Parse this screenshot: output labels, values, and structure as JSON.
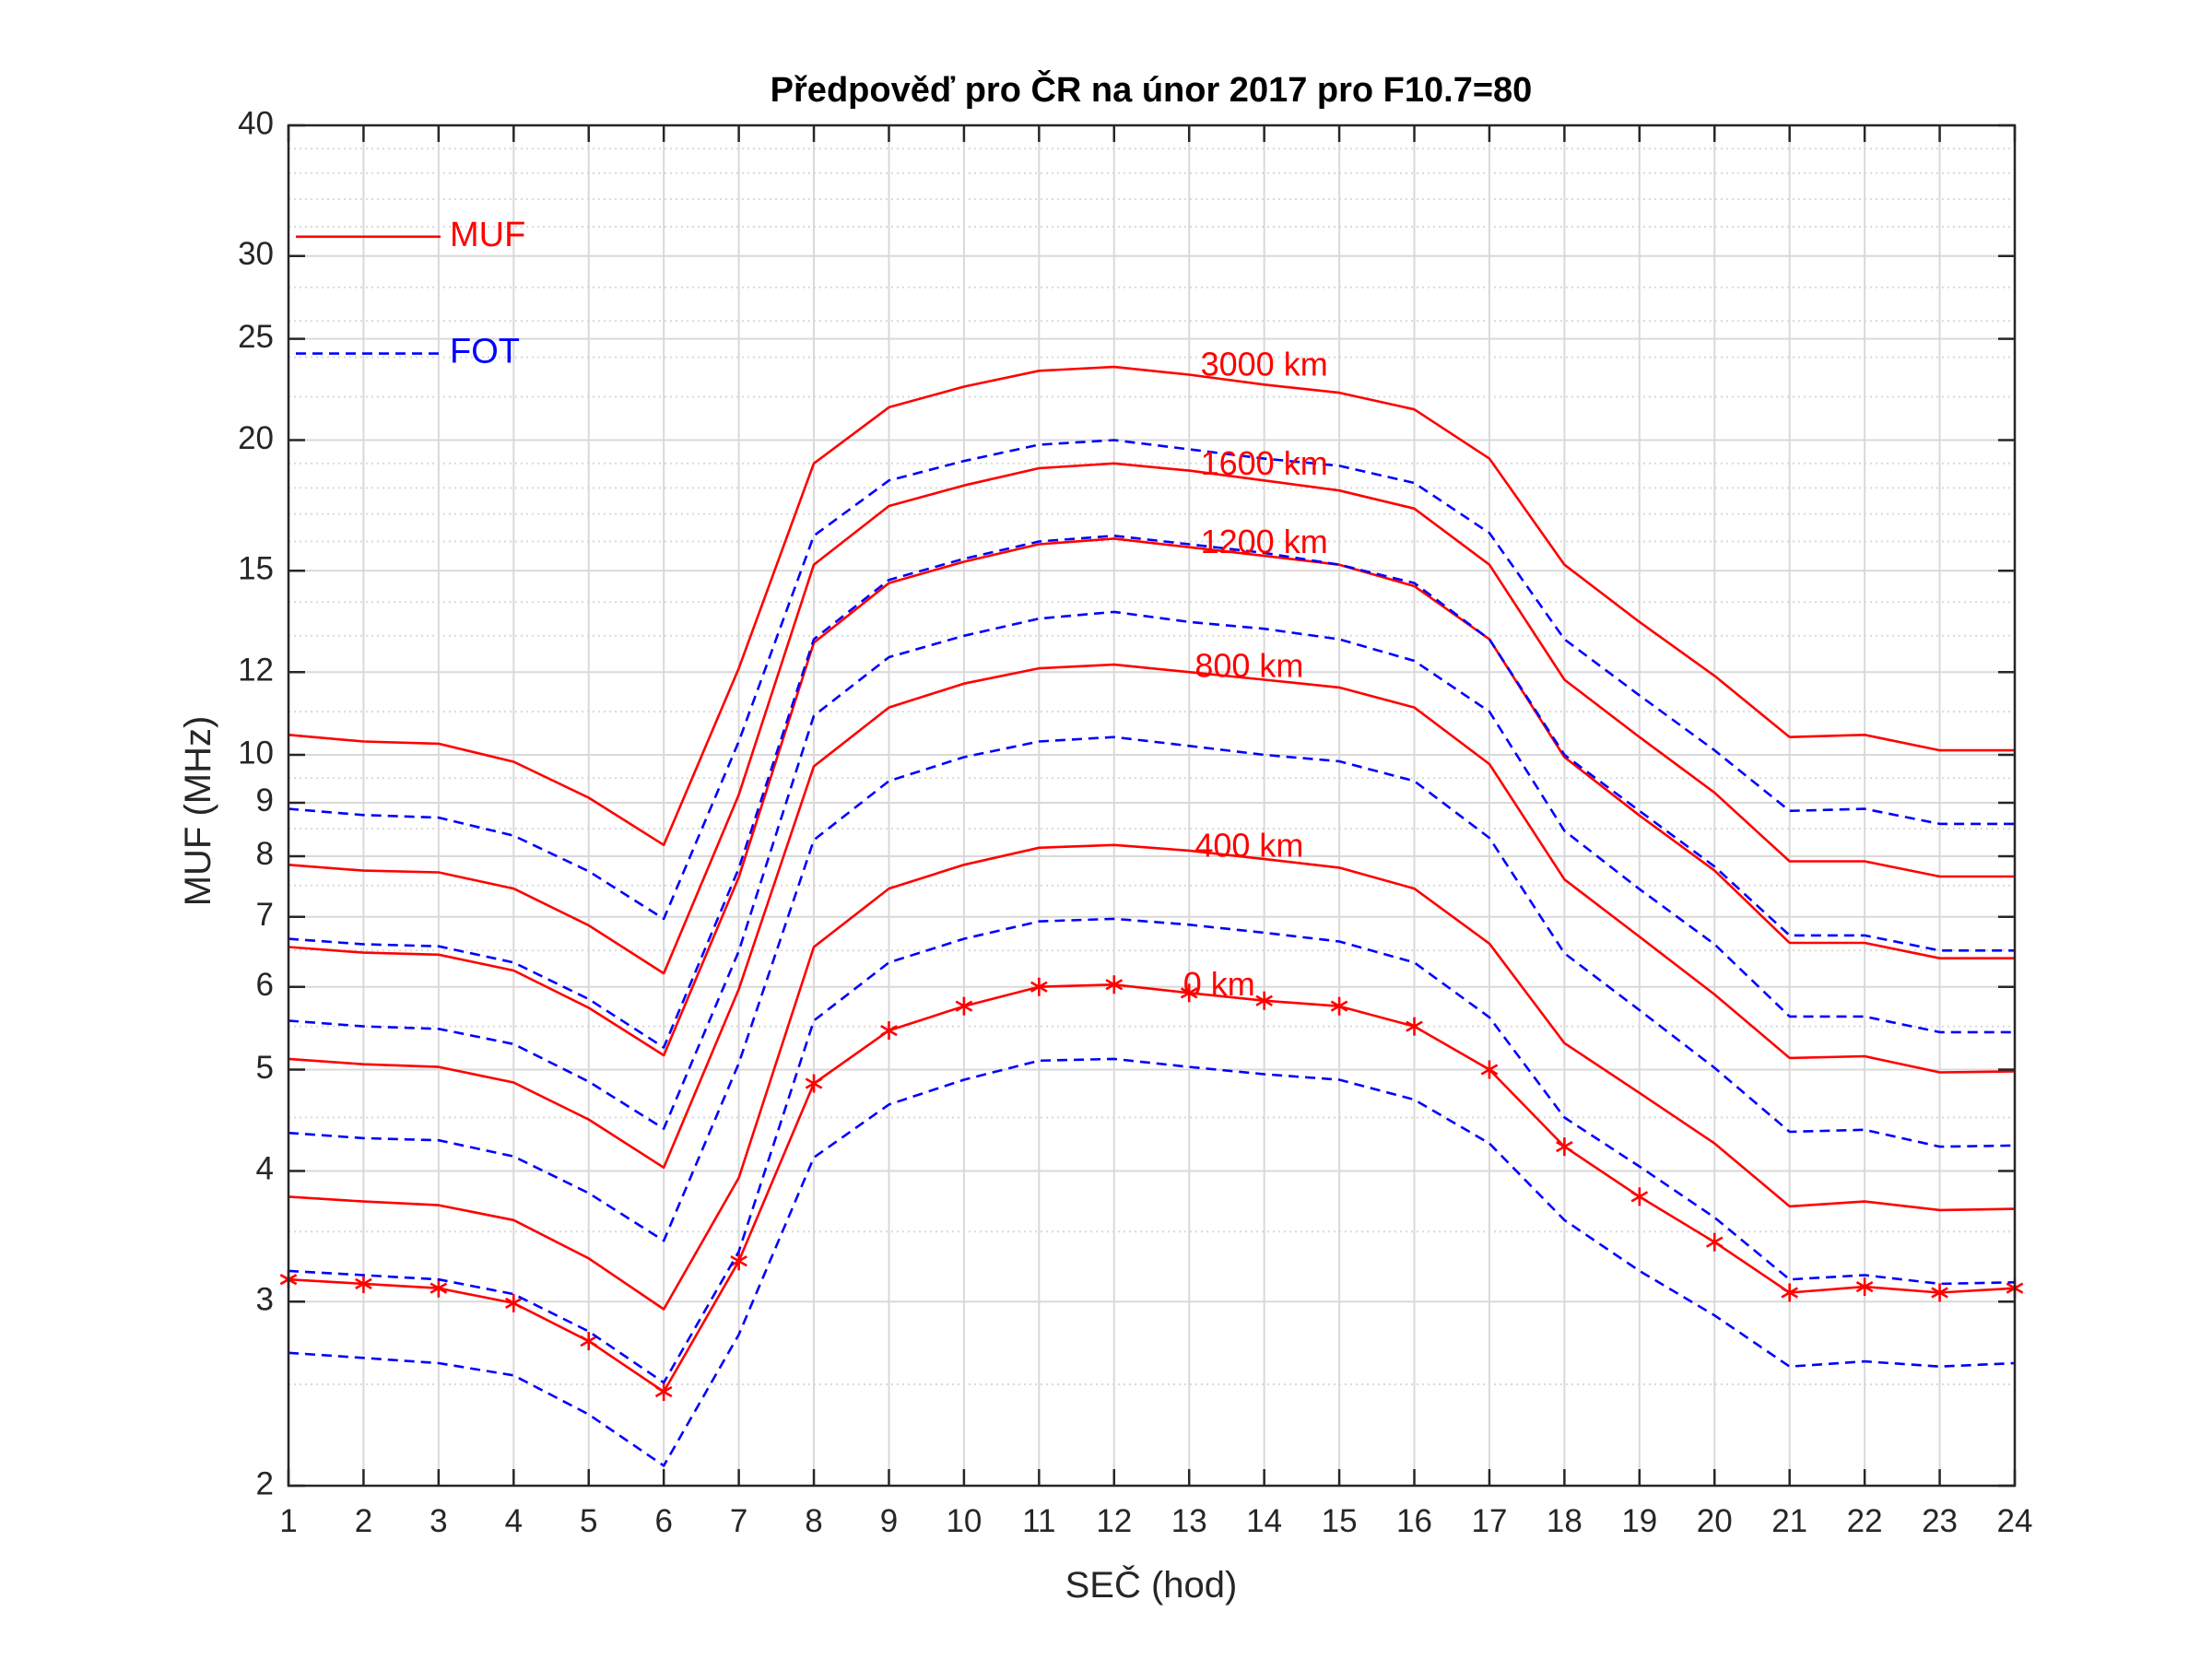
{
  "chart_data": {
    "type": "line",
    "title": "Předpověď pro ČR na únor 2017 pro F10.7=80",
    "xlabel": "SEČ (hod)",
    "ylabel": "MUF (MHz)",
    "xlim": [
      1,
      24
    ],
    "ylim": [
      2,
      40
    ],
    "yscale": "log",
    "grid": true,
    "minor_grid": true,
    "x_ticks": [
      "1",
      "2",
      "3",
      "4",
      "5",
      "6",
      "7",
      "8",
      "9",
      "10",
      "11",
      "12",
      "13",
      "14",
      "15",
      "16",
      "17",
      "18",
      "19",
      "20",
      "21",
      "22",
      "23",
      "24"
    ],
    "y_ticks": [
      2,
      3,
      4,
      5,
      6,
      7,
      8,
      9,
      10,
      12,
      15,
      20,
      25,
      30,
      40
    ],
    "y_minor_ticks": [
      2.5,
      3.5,
      4.5,
      5.5,
      6.5,
      7.5,
      8.5,
      9.5,
      11,
      13,
      14,
      16,
      17,
      18,
      19,
      22,
      24,
      26,
      28,
      32,
      34,
      36,
      38
    ],
    "colors": {
      "muf": "#ff0000",
      "fot": "#0000ff",
      "axis": "#262626",
      "grid": "#d9d9d9"
    },
    "legend": [
      {
        "label": "MUF",
        "style": "solid",
        "color": "#ff0000"
      },
      {
        "label": "FOT",
        "style": "dashed",
        "color": "#0000ff"
      }
    ],
    "x": [
      1,
      2,
      3,
      4,
      5,
      6,
      7,
      8,
      9,
      10,
      11,
      12,
      13,
      14,
      15,
      16,
      17,
      18,
      19,
      20,
      21,
      22,
      23,
      24
    ],
    "series": [
      {
        "distance": "0 km",
        "kind": "MUF",
        "marker": "asterisk",
        "values": [
          3.15,
          3.12,
          3.09,
          2.99,
          2.75,
          2.46,
          3.28,
          4.85,
          5.45,
          5.75,
          6.0,
          6.03,
          5.92,
          5.82,
          5.75,
          5.5,
          5.0,
          4.22,
          3.78,
          3.42,
          3.06,
          3.1,
          3.06,
          3.09
        ]
      },
      {
        "distance": "0 km",
        "kind": "FOT",
        "values": [
          2.68,
          2.65,
          2.62,
          2.55,
          2.34,
          2.09,
          2.79,
          4.12,
          4.63,
          4.89,
          5.1,
          5.12,
          5.03,
          4.95,
          4.89,
          4.68,
          4.25,
          3.59,
          3.21,
          2.91,
          2.6,
          2.63,
          2.6,
          2.62
        ]
      },
      {
        "distance": "400 km",
        "kind": "MUF",
        "values": [
          3.78,
          3.74,
          3.71,
          3.59,
          3.3,
          2.95,
          3.94,
          6.55,
          7.45,
          7.85,
          8.15,
          8.2,
          8.1,
          7.95,
          7.8,
          7.45,
          6.6,
          5.3,
          4.75,
          4.25,
          3.7,
          3.74,
          3.67,
          3.68
        ]
      },
      {
        "distance": "400 km",
        "kind": "FOT",
        "values": [
          3.21,
          3.18,
          3.15,
          3.05,
          2.81,
          2.51,
          3.35,
          5.57,
          6.33,
          6.67,
          6.93,
          6.97,
          6.88,
          6.76,
          6.63,
          6.33,
          5.61,
          4.5,
          4.04,
          3.61,
          3.15,
          3.18,
          3.12,
          3.13
        ]
      },
      {
        "distance": "800 km",
        "kind": "MUF",
        "values": [
          5.12,
          5.06,
          5.03,
          4.86,
          4.48,
          4.03,
          5.97,
          9.75,
          11.1,
          11.7,
          12.1,
          12.2,
          12.0,
          11.8,
          11.6,
          11.1,
          9.8,
          7.6,
          6.7,
          5.9,
          5.13,
          5.15,
          4.97,
          4.98
        ]
      },
      {
        "distance": "800 km",
        "kind": "FOT",
        "values": [
          4.35,
          4.3,
          4.28,
          4.13,
          3.81,
          3.43,
          5.07,
          8.29,
          9.44,
          9.95,
          10.3,
          10.4,
          10.2,
          10.0,
          9.86,
          9.44,
          8.33,
          6.46,
          5.7,
          5.02,
          4.36,
          4.38,
          4.22,
          4.23
        ]
      },
      {
        "distance": "1200 km",
        "kind": "MUF",
        "values": [
          6.55,
          6.47,
          6.44,
          6.22,
          5.73,
          5.16,
          7.64,
          12.8,
          14.6,
          15.3,
          15.9,
          16.1,
          15.8,
          15.5,
          15.2,
          14.5,
          12.9,
          9.95,
          8.75,
          7.75,
          6.61,
          6.61,
          6.39,
          6.39
        ]
      },
      {
        "distance": "1200 km",
        "kind": "FOT",
        "values": [
          5.57,
          5.5,
          5.47,
          5.29,
          4.87,
          4.39,
          6.49,
          10.9,
          12.4,
          13.0,
          13.5,
          13.7,
          13.4,
          13.2,
          12.9,
          12.3,
          11.0,
          8.46,
          7.44,
          6.59,
          5.62,
          5.62,
          5.43,
          5.43
        ]
      },
      {
        "distance": "1600 km",
        "kind": "MUF",
        "values": [
          7.85,
          7.75,
          7.72,
          7.45,
          6.87,
          6.18,
          9.16,
          15.2,
          17.3,
          18.1,
          18.8,
          19.0,
          18.7,
          18.3,
          17.9,
          17.2,
          15.2,
          11.8,
          10.4,
          9.2,
          7.91,
          7.91,
          7.65,
          7.65
        ]
      },
      {
        "distance": "1600 km",
        "kind": "FOT",
        "values": [
          6.67,
          6.59,
          6.56,
          6.33,
          5.84,
          5.25,
          7.79,
          12.9,
          14.7,
          15.4,
          16.0,
          16.2,
          15.9,
          15.6,
          15.2,
          14.6,
          12.9,
          10.0,
          8.84,
          7.82,
          6.72,
          6.72,
          6.5,
          6.5
        ]
      },
      {
        "distance": "3000 km",
        "kind": "MUF",
        "values": [
          10.45,
          10.3,
          10.25,
          9.85,
          9.1,
          8.2,
          12.1,
          19.0,
          21.5,
          22.5,
          23.3,
          23.5,
          23.1,
          22.6,
          22.2,
          21.4,
          19.2,
          15.2,
          13.4,
          11.9,
          10.4,
          10.45,
          10.1,
          10.1
        ]
      },
      {
        "distance": "3000 km",
        "kind": "FOT",
        "values": [
          8.88,
          8.76,
          8.71,
          8.37,
          7.74,
          6.97,
          10.3,
          16.2,
          18.3,
          19.1,
          19.8,
          20.0,
          19.6,
          19.2,
          18.9,
          18.2,
          16.3,
          12.9,
          11.4,
          10.1,
          8.84,
          8.88,
          8.59,
          8.59
        ]
      }
    ],
    "annotations": [
      {
        "text": "3000 km",
        "x": 14,
        "y": 23.5
      },
      {
        "text": "1600 km",
        "x": 14,
        "y": 18.9
      },
      {
        "text": "1200 km",
        "x": 14,
        "y": 15.9
      },
      {
        "text": "800 km",
        "x": 13.8,
        "y": 12.1
      },
      {
        "text": "400 km",
        "x": 13.8,
        "y": 8.15
      },
      {
        "text": "0 km",
        "x": 13.4,
        "y": 6.0
      }
    ]
  }
}
